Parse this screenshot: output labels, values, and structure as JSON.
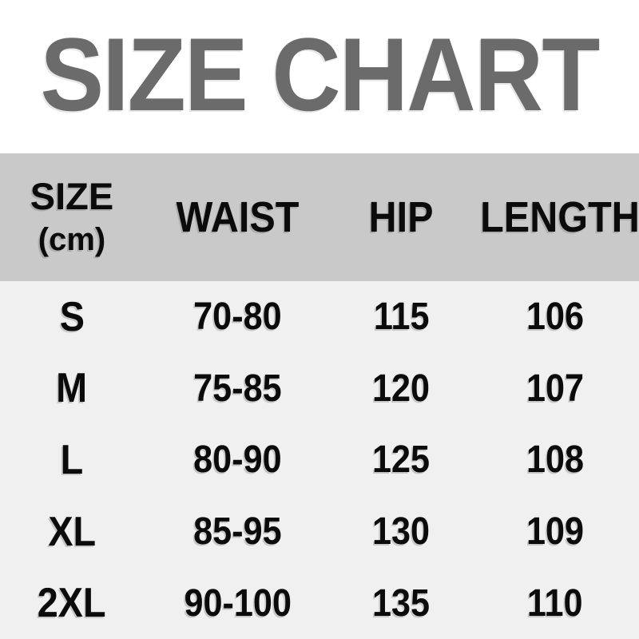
{
  "title": "SIZE CHART",
  "header": {
    "size_line1": "SIZE",
    "size_line2": "(cm)",
    "waist": "WAIST",
    "hip": "HIP",
    "length": "LENGTH"
  },
  "chart_data": {
    "type": "table",
    "title": "SIZE CHART",
    "unit_note": "(cm)",
    "columns": [
      "SIZE (cm)",
      "WAIST",
      "HIP",
      "LENGTH"
    ],
    "rows": [
      [
        "S",
        "70-80",
        "115",
        "106"
      ],
      [
        "M",
        "75-85",
        "120",
        "107"
      ],
      [
        "L",
        "80-90",
        "125",
        "108"
      ],
      [
        "XL",
        "85-95",
        "130",
        "109"
      ],
      [
        "2XL",
        "90-100",
        "135",
        "110"
      ]
    ]
  },
  "colors": {
    "title_gray": "#6b6b6b",
    "header_band": "#c9c9c9",
    "page_bg": "#f0f0f1",
    "top_bg": "#ffffff",
    "text": "#0b0b0b"
  }
}
